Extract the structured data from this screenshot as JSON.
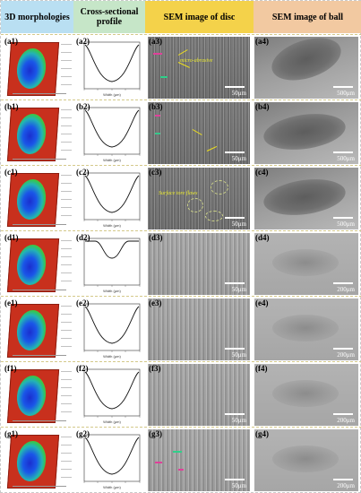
{
  "headers": [
    "3D morphologies",
    "Cross-sectional profile",
    "SEM image of disc",
    "SEM image of ball"
  ],
  "rows": [
    {
      "labels": [
        "(a1)",
        "(a2)",
        "(a3)",
        "(a4)"
      ],
      "disc_scale": "50μm",
      "ball_scale": "500μm",
      "annotation": "micro-abrasive"
    },
    {
      "labels": [
        "(b1)",
        "(b2)",
        "(b3)",
        "(b4)"
      ],
      "disc_scale": "50μm",
      "ball_scale": "500μm"
    },
    {
      "labels": [
        "(c1)",
        "(c2)",
        "(c3)",
        "(c4)"
      ],
      "disc_scale": "50μm",
      "ball_scale": "500μm",
      "annotation": "Surface tore flaws"
    },
    {
      "labels": [
        "(d1)",
        "(d2)",
        "(d3)",
        "(d4)"
      ],
      "disc_scale": "50μm",
      "ball_scale": "200μm"
    },
    {
      "labels": [
        "(e1)",
        "(e2)",
        "(e3)",
        "(e4)"
      ],
      "disc_scale": "50μm",
      "ball_scale": "200μm"
    },
    {
      "labels": [
        "(f1)",
        "(f2)",
        "(f3)",
        "(f4)"
      ],
      "disc_scale": "50μm",
      "ball_scale": "200μm"
    },
    {
      "labels": [
        "(g1)",
        "(g2)",
        "(g3)",
        "(g4)"
      ],
      "disc_scale": "50μm",
      "ball_scale": "200μm"
    }
  ],
  "profile_axis_label": "Width (μm)"
}
